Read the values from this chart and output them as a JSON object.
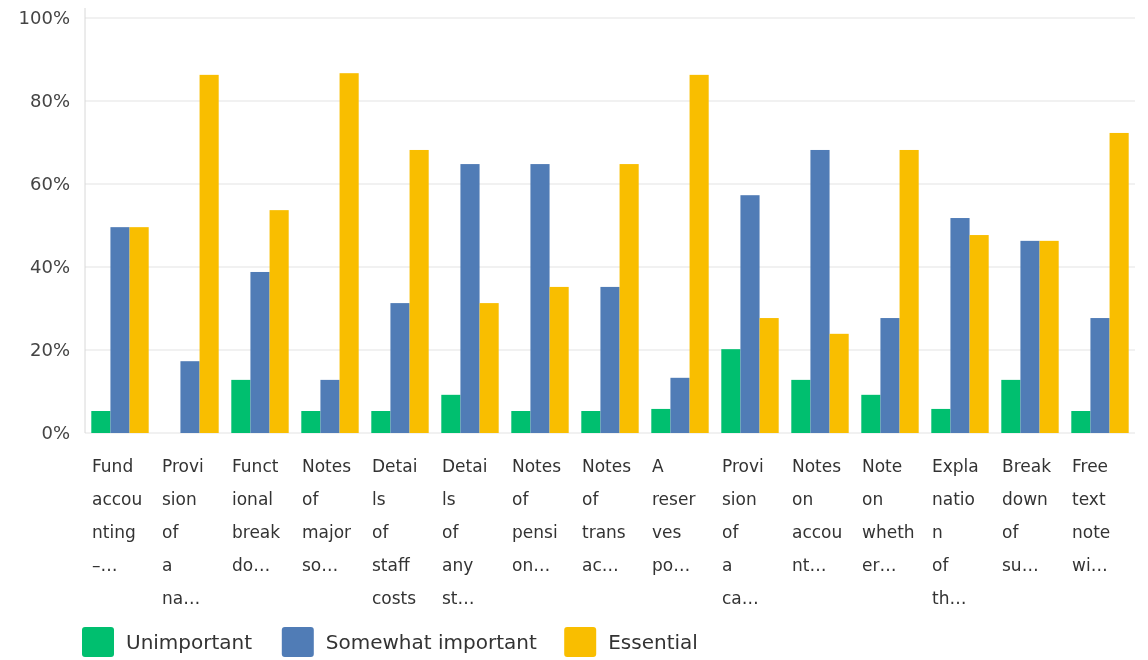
{
  "chart_data": {
    "type": "bar",
    "categories": [
      "Fund accounting –…",
      "Provision of a na…",
      "Functional breakdo…",
      "Notes of major so…",
      "Details of staff costs",
      "Details of any st…",
      "Notes of pension…",
      "Notes of transac…",
      "A reserves po…",
      "Provision of a ca…",
      "Notes on account…",
      "Note on whether…",
      "Explanation of th…",
      "Breakdown of su…",
      "Free text note wi…"
    ],
    "series": [
      {
        "name": "Unimportant",
        "color": "#00bf6f",
        "values": [
          5.3,
          0,
          12.8,
          5.3,
          5.3,
          9.2,
          5.3,
          5.3,
          5.8,
          20.2,
          12.8,
          9.2,
          5.8,
          12.8,
          5.3
        ]
      },
      {
        "name": "Somewhat important",
        "color": "#507cb6",
        "values": [
          49.6,
          17.3,
          38.8,
          12.8,
          31.3,
          64.8,
          64.8,
          35.2,
          13.3,
          57.3,
          68.2,
          27.7,
          51.8,
          46.3,
          27.7
        ]
      },
      {
        "name": "Essential",
        "color": "#f9be00",
        "values": [
          49.6,
          86.3,
          53.7,
          86.7,
          68.2,
          31.3,
          35.2,
          64.8,
          86.3,
          27.7,
          23.9,
          68.2,
          47.7,
          46.3,
          72.3
        ]
      }
    ],
    "ylim": [
      0,
      100
    ],
    "yticks": [
      {
        "value": 0,
        "label": "0%"
      },
      {
        "value": 20,
        "label": "20%"
      },
      {
        "value": 40,
        "label": "40%"
      },
      {
        "value": 60,
        "label": "60%"
      },
      {
        "value": 80,
        "label": "80%"
      },
      {
        "value": 100,
        "label": "100%"
      }
    ],
    "grid": "y",
    "legend": "bottom left"
  }
}
